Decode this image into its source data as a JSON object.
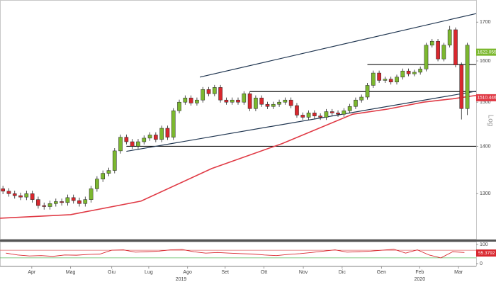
{
  "chart_data": {
    "type": "candlestick",
    "log_scale": true,
    "xlim": [
      0,
      81
    ],
    "ylim": [
      1210,
      1760
    ],
    "yticks": [
      1300,
      1400,
      1500,
      1600,
      1700
    ],
    "scale_label": "Log",
    "xticks": [
      {
        "value": 5.4,
        "label": "Apr"
      },
      {
        "value": 12,
        "label": "Mag"
      },
      {
        "value": 19,
        "label": "Giu"
      },
      {
        "value": 25.3,
        "label": "Lug"
      },
      {
        "value": 31.9,
        "label": "Ago"
      },
      {
        "value": 38.3,
        "label": "Set"
      },
      {
        "value": 44.9,
        "label": "Ott"
      },
      {
        "value": 51.6,
        "label": "Nov"
      },
      {
        "value": 58.2,
        "label": "Dic"
      },
      {
        "value": 64.9,
        "label": "Gen"
      },
      {
        "value": 71.4,
        "label": "Feb"
      },
      {
        "value": 78,
        "label": "Mar"
      }
    ],
    "years": [
      {
        "value": 30.8,
        "label": "2019"
      },
      {
        "value": 71.4,
        "label": "2020"
      }
    ],
    "up_color": "#7cb82f",
    "down_color": "#d9272e",
    "open": [
      1310,
      1305,
      1300,
      1296,
      1293,
      1300,
      1288,
      1276,
      1274,
      1280,
      1284,
      1282,
      1292,
      1286,
      1280,
      1288,
      1310,
      1330,
      1342,
      1348,
      1390,
      1420,
      1410,
      1400,
      1410,
      1418,
      1425,
      1415,
      1440,
      1420,
      1480,
      1500,
      1510,
      1498,
      1505,
      1530,
      1520,
      1535,
      1505,
      1500,
      1505,
      1500,
      1520,
      1485,
      1510,
      1495,
      1490,
      1495,
      1500,
      1505,
      1492,
      1470,
      1465,
      1475,
      1468,
      1465,
      1478,
      1475,
      1472,
      1480,
      1490,
      1505,
      1512,
      1540,
      1570,
      1552,
      1555,
      1548,
      1560,
      1575,
      1568,
      1572,
      1580,
      1640,
      1650,
      1605,
      1640,
      1680,
      1590,
      1485
    ],
    "high": [
      1316,
      1311,
      1306,
      1302,
      1306,
      1306,
      1294,
      1282,
      1286,
      1290,
      1290,
      1298,
      1298,
      1292,
      1294,
      1316,
      1336,
      1348,
      1354,
      1396,
      1426,
      1426,
      1416,
      1416,
      1424,
      1431,
      1431,
      1446,
      1446,
      1486,
      1506,
      1516,
      1516,
      1511,
      1536,
      1536,
      1541,
      1541,
      1511,
      1511,
      1511,
      1526,
      1526,
      1516,
      1516,
      1501,
      1501,
      1506,
      1511,
      1511,
      1498,
      1476,
      1481,
      1481,
      1474,
      1484,
      1484,
      1481,
      1486,
      1496,
      1511,
      1518,
      1546,
      1576,
      1576,
      1561,
      1561,
      1566,
      1581,
      1581,
      1578,
      1586,
      1646,
      1656,
      1656,
      1646,
      1690,
      1686,
      1596,
      1646
    ],
    "low": [
      1299,
      1294,
      1290,
      1287,
      1287,
      1282,
      1270,
      1268,
      1268,
      1274,
      1276,
      1276,
      1280,
      1274,
      1274,
      1282,
      1304,
      1324,
      1336,
      1342,
      1384,
      1404,
      1394,
      1394,
      1404,
      1412,
      1409,
      1409,
      1414,
      1414,
      1474,
      1494,
      1492,
      1492,
      1499,
      1514,
      1514,
      1499,
      1494,
      1494,
      1494,
      1494,
      1479,
      1479,
      1489,
      1484,
      1484,
      1489,
      1494,
      1486,
      1464,
      1459,
      1459,
      1462,
      1459,
      1459,
      1469,
      1466,
      1466,
      1474,
      1484,
      1499,
      1506,
      1534,
      1546,
      1546,
      1542,
      1542,
      1554,
      1562,
      1562,
      1566,
      1574,
      1634,
      1599,
      1599,
      1634,
      1584,
      1460,
      1470
    ],
    "close": [
      1305,
      1300,
      1296,
      1293,
      1300,
      1288,
      1276,
      1274,
      1280,
      1284,
      1282,
      1292,
      1286,
      1280,
      1288,
      1310,
      1330,
      1342,
      1348,
      1390,
      1420,
      1410,
      1400,
      1410,
      1418,
      1425,
      1415,
      1440,
      1420,
      1480,
      1500,
      1510,
      1498,
      1505,
      1530,
      1520,
      1535,
      1505,
      1500,
      1505,
      1500,
      1520,
      1485,
      1510,
      1495,
      1490,
      1495,
      1500,
      1505,
      1492,
      1470,
      1465,
      1475,
      1468,
      1465,
      1478,
      1475,
      1472,
      1480,
      1490,
      1505,
      1512,
      1540,
      1570,
      1552,
      1555,
      1548,
      1560,
      1575,
      1568,
      1572,
      1580,
      1640,
      1650,
      1605,
      1640,
      1680,
      1590,
      1485,
      1640
    ],
    "last_price": {
      "value": 1622.0552,
      "color": "#7cb82f"
    },
    "moving_average": {
      "color": "#e03a45",
      "x": [
        0,
        12,
        24,
        36,
        48,
        60,
        66,
        72,
        77,
        81
      ],
      "values": [
        1251,
        1258,
        1285,
        1352,
        1406,
        1472,
        1484,
        1500,
        1508,
        1516
      ],
      "last": 1510.4463
    },
    "trend_color": "#1f3550",
    "trend_lines": [
      {
        "x": [
          34,
          81
        ],
        "values": [
          1560,
          1723
        ]
      },
      {
        "x": [
          21.5,
          81
        ],
        "values": [
          1389,
          1526
        ]
      }
    ],
    "levels": [
      {
        "x": [
          21.5,
          81
        ],
        "values": [
          1400,
          1400
        ]
      },
      {
        "x": [
          42.5,
          81
        ],
        "values": [
          1525,
          1525
        ]
      },
      {
        "x": [
          62.5,
          81
        ],
        "values": [
          1591,
          1591
        ]
      }
    ],
    "rsi": {
      "color": "#d9272e",
      "ylim": [
        0,
        100
      ],
      "yticks": [
        0,
        100
      ],
      "levels": [
        {
          "value": 70,
          "color": "#e06a6a"
        },
        {
          "value": 30,
          "color": "#5cb85c"
        }
      ],
      "x": [
        1,
        3,
        5,
        7,
        9,
        11,
        13,
        15,
        17,
        19,
        21,
        23,
        25,
        27,
        29,
        31,
        33,
        35,
        37,
        39,
        41,
        43,
        45,
        47,
        49,
        51,
        53,
        55,
        57,
        59,
        61,
        63,
        65,
        67,
        69,
        71,
        73,
        75,
        77,
        79
      ],
      "values": [
        55,
        45,
        40,
        42,
        38,
        45,
        44,
        48,
        50,
        70,
        72,
        60,
        62,
        65,
        72,
        74,
        62,
        55,
        58,
        55,
        52,
        50,
        45,
        42,
        48,
        52,
        58,
        65,
        72,
        60,
        62,
        65,
        70,
        75,
        55,
        72,
        45,
        30,
        62,
        58
      ],
      "last": 55.3792
    }
  }
}
